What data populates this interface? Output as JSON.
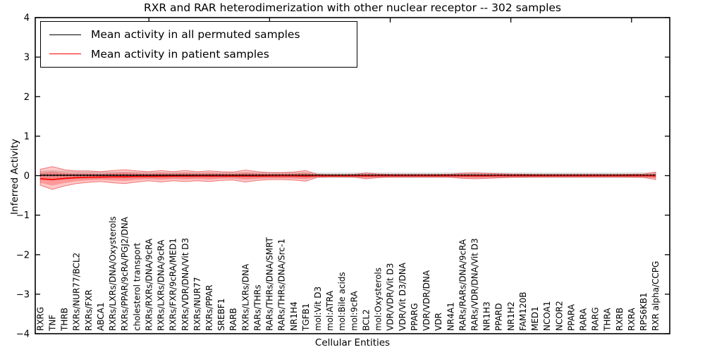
{
  "chart_data": {
    "type": "line",
    "title": "RXR and RAR heterodimerization with other nuclear receptor -- 302 samples",
    "xlabel": "Cellular Entities",
    "ylabel": "Inferred Activity",
    "ylim": [
      -4,
      4
    ],
    "ytick_values": [
      4,
      3,
      2,
      1,
      0,
      -1,
      -2,
      -3,
      -4
    ],
    "ytick_labels": [
      "4",
      "3",
      "2",
      "1",
      "0",
      "−1",
      "−2",
      "−3",
      "−4"
    ],
    "x_top_tick_indices": [
      9,
      19,
      29,
      39,
      49
    ],
    "grid": false,
    "legend_position": "upper left",
    "categories": [
      "RXRG",
      "TNF",
      "THRB",
      "RXRs/NUR77/BCL2",
      "RXRs/FXR",
      "ABCA1",
      "RXRs/LXRs/DNA/Oxysterols",
      "RXRs/PPAR/9cRA/PGJ2/DNA",
      "cholesterol transport",
      "RXRs/RXRs/DNA/9cRA",
      "RXRs/LXRs/DNA/9cRA",
      "RXRs/FXR/9cRA/MED1",
      "RXRs/VDR/DNA/Vit D3",
      "RXRs/NUR77",
      "RXRs/PPAR",
      "SREBF1",
      "RARB",
      "RXRs/LXRs/DNA",
      "RARs/THRs",
      "RARs/THRs/DNA/SMRT",
      "RARs/THRs/DNA/Src-1",
      "NR1H4",
      "TGFB1",
      "mol:Vit D3",
      "mol:ATRA",
      "mol:Bile acids",
      "mol:9cRA",
      "BCL2",
      "mol:Oxysterols",
      "VDR/VDR/Vit D3",
      "VDR/Vit D3/DNA",
      "PPARG",
      "VDR/VDR/DNA",
      "VDR",
      "NR4A1",
      "RARs/RARs/DNA/9cRA",
      "RARs/VDR/DNA/Vit D3",
      "NR1H3",
      "PPARD",
      "NR1H2",
      "FAM120B",
      "MED1",
      "NCOA1",
      "NCOR2",
      "PPARA",
      "RARA",
      "RARG",
      "THRA",
      "RXRB",
      "RXRA",
      "RPS6KB1",
      "RXR alpha/CCPG"
    ],
    "series": [
      {
        "name": "Mean activity in all permuted samples",
        "color": "#000000",
        "style": "solid with dotted overlay",
        "constant_value": 0.01,
        "band": {
          "color": "#888888",
          "alpha": 0.13,
          "half_width": [
            0.1,
            0.12,
            0.1,
            0.09,
            0.085,
            0.08,
            0.08,
            0.08,
            0.075,
            0.075,
            0.072,
            0.07,
            0.07,
            0.07,
            0.07,
            0.068,
            0.068,
            0.07,
            0.068,
            0.065,
            0.065,
            0.065,
            0.068,
            0.06,
            0.06,
            0.06,
            0.06,
            0.062,
            0.06,
            0.06,
            0.06,
            0.06,
            0.06,
            0.06,
            0.06,
            0.062,
            0.065,
            0.062,
            0.06,
            0.06,
            0.06,
            0.06,
            0.06,
            0.06,
            0.06,
            0.06,
            0.06,
            0.06,
            0.06,
            0.06,
            0.062,
            0.065
          ]
        }
      },
      {
        "name": "Mean activity in patient samples",
        "color": "#ff0000",
        "style": "solid",
        "values": [
          -0.08,
          -0.1,
          -0.07,
          -0.05,
          -0.04,
          -0.035,
          -0.03,
          -0.028,
          -0.022,
          -0.02,
          -0.018,
          -0.015,
          -0.014,
          -0.012,
          -0.012,
          -0.01,
          -0.01,
          -0.012,
          -0.01,
          -0.009,
          -0.008,
          -0.008,
          -0.01,
          -0.006,
          -0.005,
          -0.005,
          -0.005,
          -0.007,
          -0.005,
          -0.004,
          -0.004,
          -0.004,
          -0.004,
          -0.004,
          -0.004,
          -0.005,
          -0.005,
          -0.005,
          -0.004,
          -0.004,
          -0.003,
          -0.003,
          -0.003,
          -0.003,
          -0.003,
          -0.003,
          -0.003,
          -0.003,
          -0.003,
          -0.003,
          -0.004,
          -0.005
        ],
        "band": {
          "color": "#ff0000",
          "alpha_outer": 0.25,
          "alpha_inner": 0.28,
          "inner_scale": 0.62,
          "hi": [
            0.16,
            0.23,
            0.15,
            0.12,
            0.12,
            0.1,
            0.13,
            0.15,
            0.12,
            0.1,
            0.13,
            0.1,
            0.13,
            0.1,
            0.12,
            0.1,
            0.09,
            0.14,
            0.1,
            0.08,
            0.08,
            0.09,
            0.13,
            0.03,
            0.025,
            0.025,
            0.03,
            0.07,
            0.04,
            0.03,
            0.03,
            0.03,
            0.03,
            0.03,
            0.035,
            0.06,
            0.07,
            0.06,
            0.05,
            0.04,
            0.035,
            0.03,
            0.03,
            0.03,
            0.03,
            0.03,
            0.03,
            0.03,
            0.03,
            0.035,
            0.04,
            0.09
          ],
          "lo": [
            -0.24,
            -0.35,
            -0.26,
            -0.2,
            -0.17,
            -0.15,
            -0.18,
            -0.2,
            -0.16,
            -0.13,
            -0.16,
            -0.13,
            -0.15,
            -0.13,
            -0.15,
            -0.12,
            -0.11,
            -0.16,
            -0.12,
            -0.1,
            -0.1,
            -0.11,
            -0.14,
            -0.04,
            -0.03,
            -0.03,
            -0.035,
            -0.08,
            -0.05,
            -0.035,
            -0.035,
            -0.035,
            -0.035,
            -0.035,
            -0.04,
            -0.07,
            -0.08,
            -0.07,
            -0.055,
            -0.045,
            -0.04,
            -0.035,
            -0.035,
            -0.035,
            -0.035,
            -0.035,
            -0.035,
            -0.035,
            -0.035,
            -0.04,
            -0.045,
            -0.1
          ]
        }
      }
    ]
  }
}
